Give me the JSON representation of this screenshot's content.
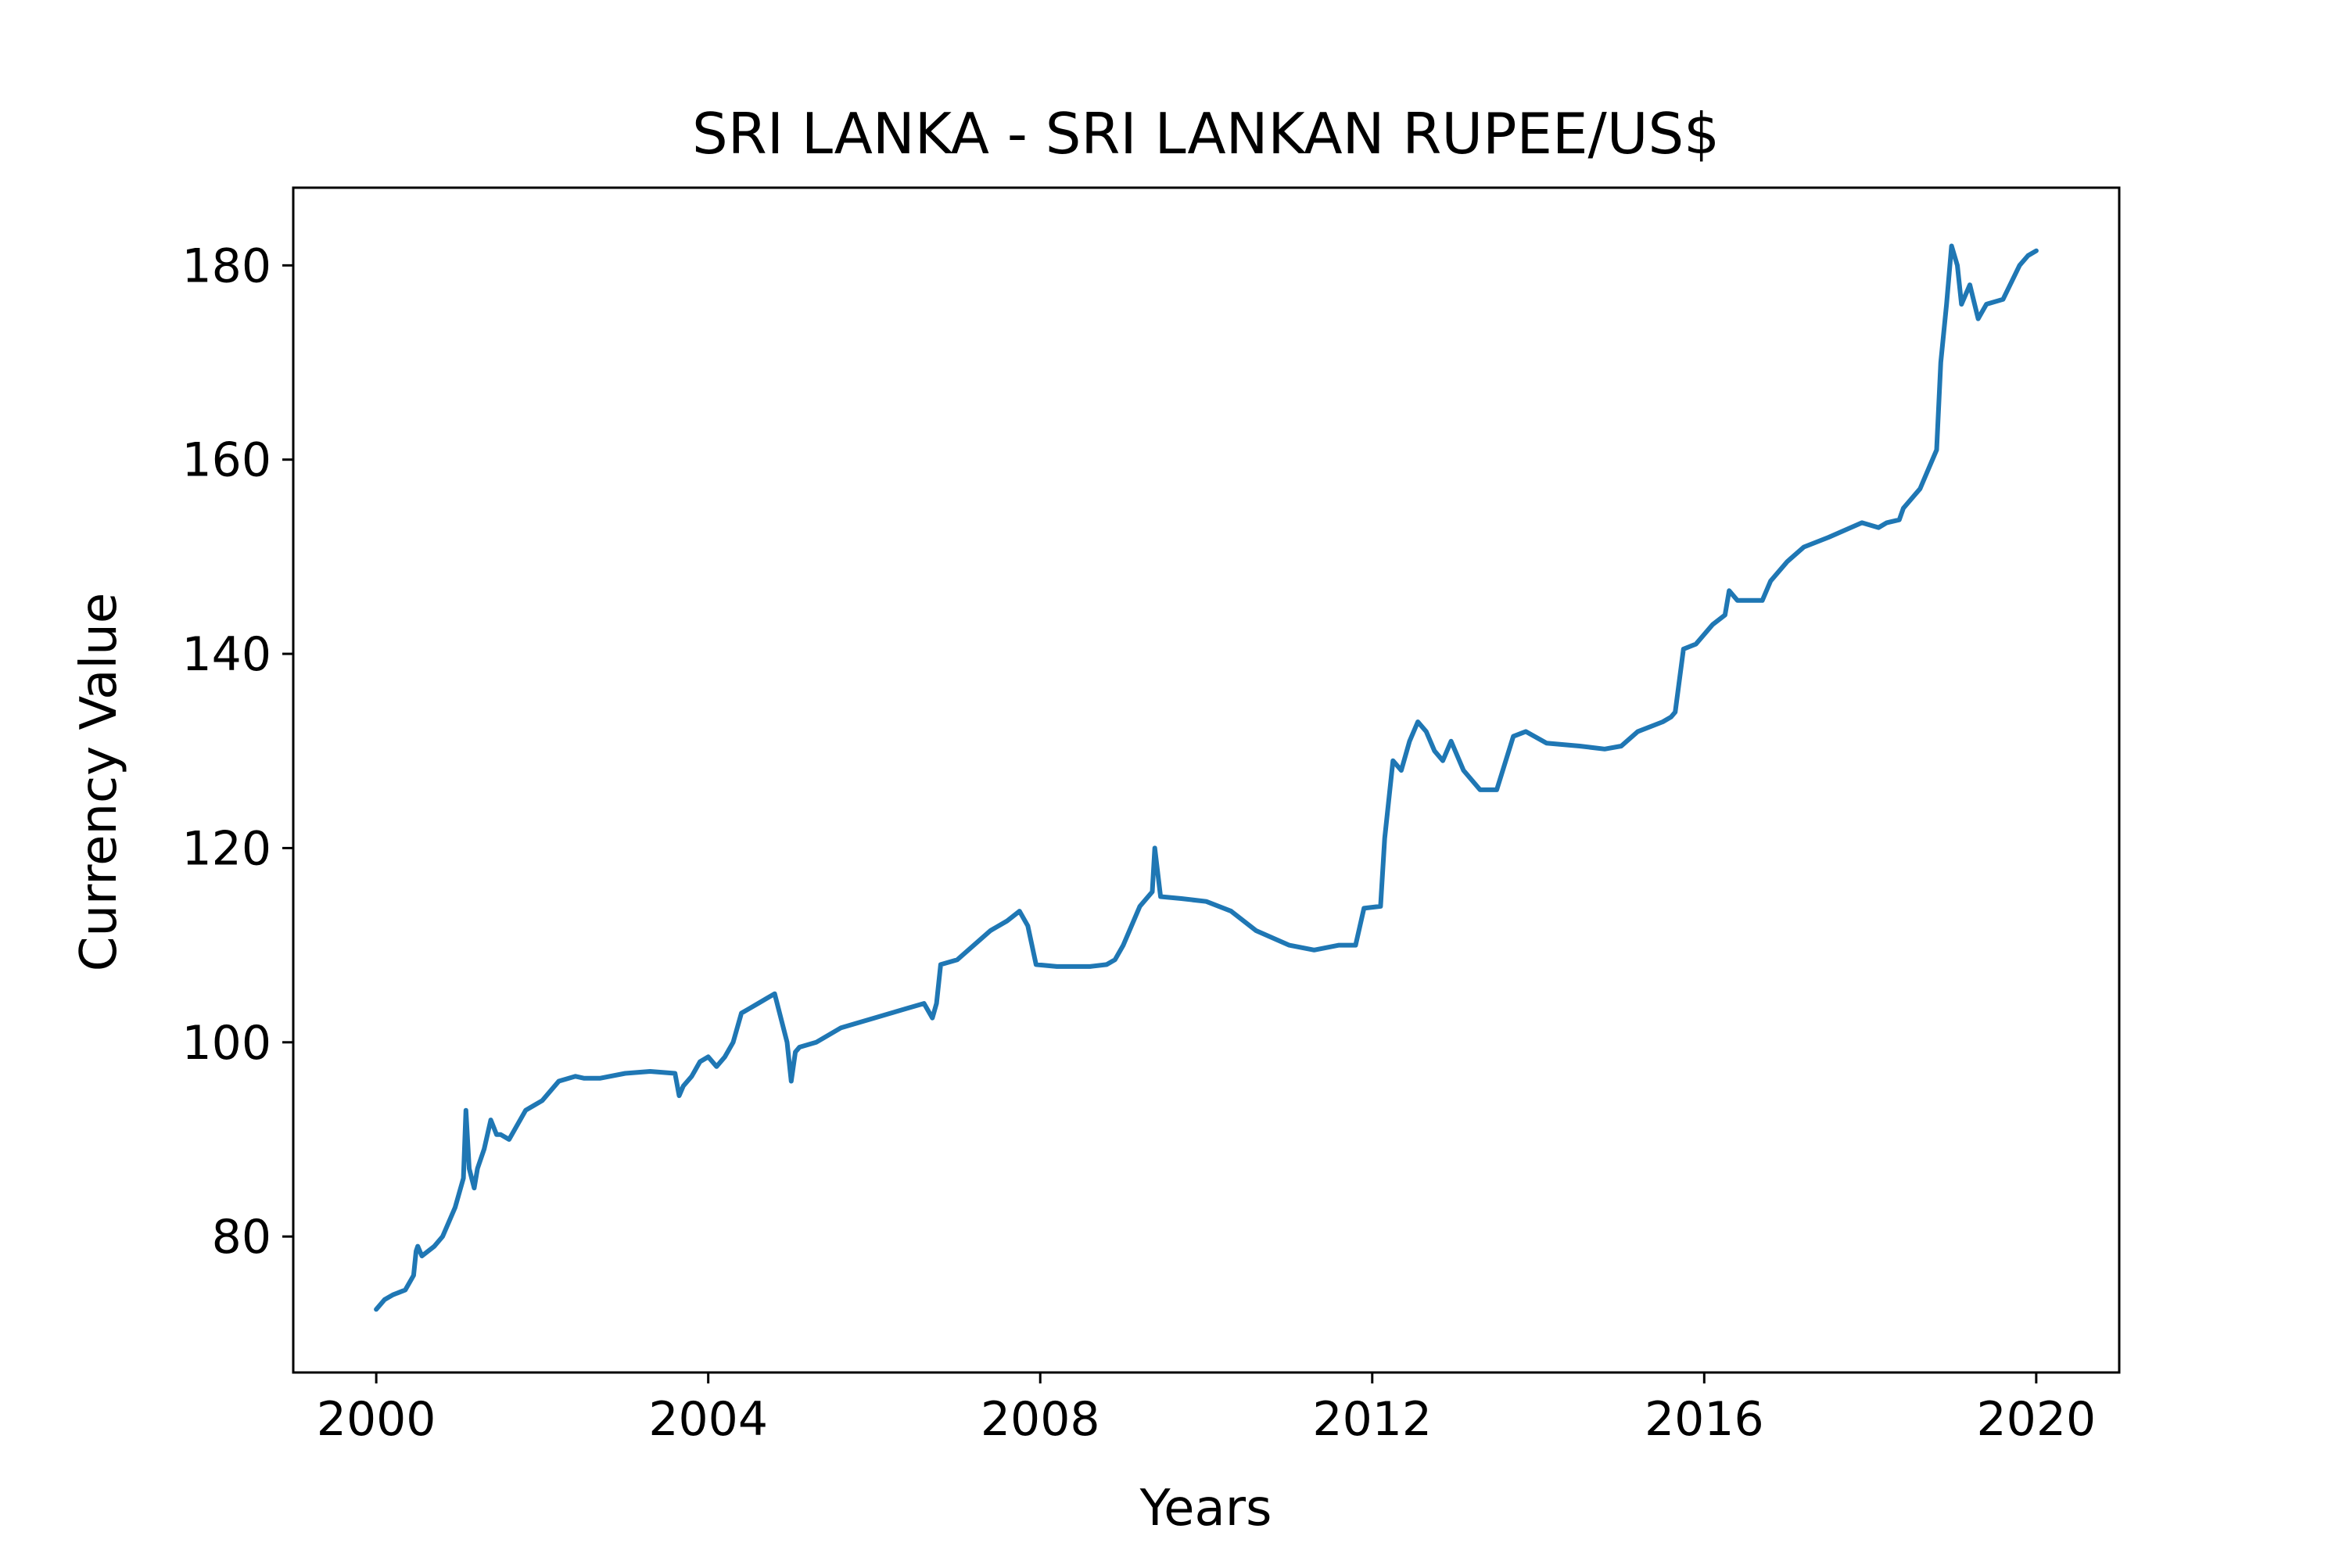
{
  "chart_data": {
    "type": "line",
    "title": "SRI LANKA - SRI LANKAN RUPEE/US$",
    "xlabel": "Years",
    "ylabel": "Currency Value",
    "xlim": [
      1999.0,
      2021.0
    ],
    "ylim": [
      66.0,
      188.0
    ],
    "x_ticks": [
      2000,
      2004,
      2008,
      2012,
      2016,
      2020
    ],
    "x_tick_labels": [
      "2000",
      "2004",
      "2008",
      "2012",
      "2016",
      "2020"
    ],
    "y_ticks": [
      80,
      100,
      120,
      140,
      160,
      180
    ],
    "y_tick_labels": [
      "80",
      "100",
      "120",
      "140",
      "160",
      "180"
    ],
    "grid": false,
    "legend": "none",
    "line_color": "#1f77b4",
    "series": [
      {
        "x": [
          2000.0,
          2000.1,
          2000.2,
          2000.35,
          2000.45,
          2000.48,
          2000.5,
          2000.55,
          2000.7,
          2000.8,
          2000.95,
          2001.05,
          2001.08,
          2001.12,
          2001.18,
          2001.22,
          2001.3,
          2001.38,
          2001.45,
          2001.5,
          2001.6,
          2001.8,
          2001.9,
          2002.0,
          2002.2,
          2002.4,
          2002.5,
          2002.7,
          2003.0,
          2003.3,
          2003.6,
          2003.65,
          2003.7,
          2003.8,
          2003.9,
          2004.0,
          2004.1,
          2004.2,
          2004.3,
          2004.4,
          2004.5,
          2004.6,
          2004.7,
          2004.8,
          2004.95,
          2005.0,
          2005.05,
          2005.1,
          2005.3,
          2005.6,
          2005.8,
          2006.0,
          2006.2,
          2006.4,
          2006.6,
          2006.7,
          2006.75,
          2006.8,
          2007.0,
          2007.2,
          2007.4,
          2007.6,
          2007.75,
          2007.85,
          2007.95,
          2008.2,
          2008.6,
          2008.8,
          2008.9,
          2009.0,
          2009.2,
          2009.35,
          2009.38,
          2009.45,
          2009.7,
          2010.0,
          2010.3,
          2010.6,
          2011.0,
          2011.3,
          2011.6,
          2011.8,
          2011.9,
          2012.1,
          2012.15,
          2012.25,
          2012.35,
          2012.45,
          2012.55,
          2012.65,
          2012.75,
          2012.85,
          2012.95,
          2013.1,
          2013.3,
          2013.5,
          2013.7,
          2013.85,
          2014.1,
          2014.5,
          2014.8,
          2015.0,
          2015.2,
          2015.5,
          2015.6,
          2015.65,
          2015.75,
          2015.9,
          2016.1,
          2016.25,
          2016.3,
          2016.4,
          2016.5,
          2016.7,
          2016.8,
          2017.0,
          2017.2,
          2017.5,
          2017.9,
          2018.1,
          2018.2,
          2018.35,
          2018.4,
          2018.6,
          2018.7,
          2018.8,
          2018.85,
          2018.92,
          2018.98,
          2019.05,
          2019.1,
          2019.2,
          2019.3,
          2019.4,
          2019.6,
          2019.8,
          2019.9,
          2020.0
        ],
        "y": [
          72.5,
          73.5,
          74.0,
          74.5,
          76.0,
          78.5,
          79.0,
          78.0,
          79.0,
          80.0,
          83.0,
          86.0,
          93.0,
          87.0,
          85.0,
          87.0,
          89.0,
          92.0,
          90.5,
          90.5,
          90.0,
          93.0,
          93.5,
          94.0,
          96.0,
          96.5,
          96.3,
          96.3,
          96.8,
          97.0,
          96.8,
          94.5,
          95.5,
          96.5,
          98.0,
          98.5,
          97.5,
          98.5,
          100.0,
          103.0,
          103.5,
          104.0,
          104.5,
          105.0,
          100.0,
          96.0,
          99.0,
          99.5,
          100.0,
          101.5,
          102.0,
          102.5,
          103.0,
          103.5,
          104.0,
          102.5,
          104.0,
          108.0,
          108.5,
          110.0,
          111.5,
          112.5,
          113.5,
          112.0,
          108.0,
          107.8,
          107.8,
          108.0,
          108.5,
          110.0,
          114.0,
          115.5,
          120.0,
          115.0,
          114.8,
          114.5,
          113.5,
          111.5,
          110.0,
          109.5,
          110.0,
          110.0,
          113.8,
          114.0,
          121.0,
          129.0,
          128.0,
          131.0,
          133.0,
          132.0,
          130.0,
          129.0,
          131.0,
          128.0,
          126.0,
          126.0,
          131.5,
          132.0,
          130.8,
          130.5,
          130.2,
          130.5,
          132.0,
          133.0,
          133.5,
          134.0,
          140.5,
          141.0,
          143.0,
          144.0,
          146.5,
          145.5,
          145.5,
          145.5,
          147.5,
          149.5,
          151.0,
          152.0,
          153.5,
          153.0,
          153.5,
          153.8,
          155.0,
          157.0,
          159.0,
          161.0,
          170.0,
          176.0,
          182.0,
          180.0,
          176.0,
          178.0,
          174.5,
          176.0,
          176.5,
          180.0,
          181.0,
          181.5
        ]
      }
    ]
  }
}
